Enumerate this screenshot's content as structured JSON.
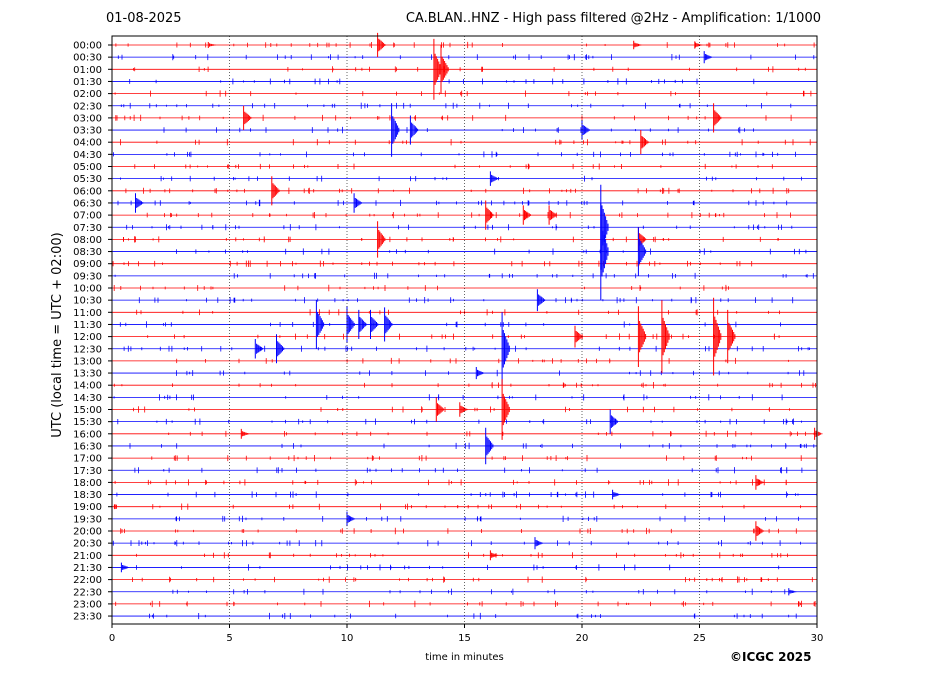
{
  "header": {
    "date": "01-08-2025",
    "title": "CA.BLAN..HNZ - High pass filtered @2Hz - Amplification: 1/1000"
  },
  "footer": {
    "copyright": "©ICGC 2025"
  },
  "chart_data": {
    "type": "line",
    "title": "CA.BLAN..HNZ - High pass filtered @2Hz - Amplification: 1/1000",
    "xlabel": "time in minutes",
    "ylabel": "UTC (local time = UTC + 02:00)",
    "xlim": [
      0,
      30
    ],
    "xticks": [
      0,
      5,
      10,
      15,
      20,
      25,
      30
    ],
    "grid": "vertical dotted lines at 5-minute intervals",
    "trace_colors": [
      "#ff0000",
      "#0000ff"
    ],
    "rows": [
      "00:00",
      "00:30",
      "01:00",
      "01:30",
      "02:00",
      "02:30",
      "03:00",
      "03:30",
      "04:00",
      "04:30",
      "05:00",
      "05:30",
      "06:00",
      "06:30",
      "07:00",
      "07:30",
      "08:00",
      "08:30",
      "09:00",
      "09:30",
      "10:00",
      "10:30",
      "11:00",
      "11:30",
      "12:00",
      "12:30",
      "13:00",
      "13:30",
      "14:00",
      "14:30",
      "15:00",
      "15:30",
      "16:00",
      "16:30",
      "17:00",
      "17:30",
      "18:00",
      "18:30",
      "19:00",
      "19:30",
      "20:00",
      "20:30",
      "21:00",
      "21:30",
      "22:00",
      "22:30",
      "23:00",
      "23:30"
    ],
    "events": [
      {
        "row": "00:00",
        "minute": 4.1,
        "amp": 0.25
      },
      {
        "row": "00:00",
        "minute": 11.3,
        "amp": 1.0
      },
      {
        "row": "00:00",
        "minute": 22.2,
        "amp": 0.35
      },
      {
        "row": "00:00",
        "minute": 24.8,
        "amp": 0.3
      },
      {
        "row": "00:30",
        "minute": 25.2,
        "amp": 0.5
      },
      {
        "row": "01:00",
        "minute": 13.7,
        "amp": 2.5
      },
      {
        "row": "01:00",
        "minute": 14.0,
        "amp": 2.0
      },
      {
        "row": "03:00",
        "minute": 5.6,
        "amp": 1.0
      },
      {
        "row": "03:00",
        "minute": 25.6,
        "amp": 1.2
      },
      {
        "row": "03:30",
        "minute": 11.9,
        "amp": 2.2
      },
      {
        "row": "03:30",
        "minute": 12.7,
        "amp": 1.2
      },
      {
        "row": "03:30",
        "minute": 20.0,
        "amp": 0.8
      },
      {
        "row": "04:00",
        "minute": 22.5,
        "amp": 1.0
      },
      {
        "row": "05:30",
        "minute": 16.1,
        "amp": 0.6
      },
      {
        "row": "06:00",
        "minute": 6.8,
        "amp": 1.2
      },
      {
        "row": "06:30",
        "minute": 1.0,
        "amp": 0.8
      },
      {
        "row": "06:30",
        "minute": 10.3,
        "amp": 0.8
      },
      {
        "row": "07:00",
        "minute": 15.9,
        "amp": 1.2
      },
      {
        "row": "07:00",
        "minute": 17.5,
        "amp": 0.8
      },
      {
        "row": "07:00",
        "minute": 18.6,
        "amp": 0.8
      },
      {
        "row": "07:30",
        "minute": 20.8,
        "amp": 3.5
      },
      {
        "row": "08:00",
        "minute": 11.3,
        "amp": 1.5
      },
      {
        "row": "08:00",
        "minute": 22.4,
        "amp": 1.0
      },
      {
        "row": "08:30",
        "minute": 20.8,
        "amp": 4.0
      },
      {
        "row": "08:30",
        "minute": 22.4,
        "amp": 2.0
      },
      {
        "row": "10:30",
        "minute": 18.1,
        "amp": 0.9
      },
      {
        "row": "11:30",
        "minute": 8.7,
        "amp": 2.0
      },
      {
        "row": "11:30",
        "minute": 10.0,
        "amp": 1.5
      },
      {
        "row": "11:30",
        "minute": 10.5,
        "amp": 1.2
      },
      {
        "row": "11:30",
        "minute": 11.0,
        "amp": 1.2
      },
      {
        "row": "11:30",
        "minute": 11.6,
        "amp": 1.4
      },
      {
        "row": "12:00",
        "minute": 19.7,
        "amp": 0.9
      },
      {
        "row": "12:00",
        "minute": 22.4,
        "amp": 2.5
      },
      {
        "row": "12:00",
        "minute": 23.4,
        "amp": 3.0
      },
      {
        "row": "12:00",
        "minute": 25.6,
        "amp": 3.2
      },
      {
        "row": "12:00",
        "minute": 26.2,
        "amp": 2.2
      },
      {
        "row": "12:30",
        "minute": 6.1,
        "amp": 0.8
      },
      {
        "row": "12:30",
        "minute": 7.0,
        "amp": 1.2
      },
      {
        "row": "12:30",
        "minute": 16.6,
        "amp": 3.0
      },
      {
        "row": "13:30",
        "minute": 15.5,
        "amp": 0.5
      },
      {
        "row": "15:00",
        "minute": 13.8,
        "amp": 1.0
      },
      {
        "row": "15:00",
        "minute": 14.8,
        "amp": 0.6
      },
      {
        "row": "15:00",
        "minute": 16.6,
        "amp": 2.5
      },
      {
        "row": "15:30",
        "minute": 21.2,
        "amp": 1.0
      },
      {
        "row": "16:00",
        "minute": 5.5,
        "amp": 0.4
      },
      {
        "row": "16:00",
        "minute": 29.9,
        "amp": 0.5
      },
      {
        "row": "16:30",
        "minute": 15.9,
        "amp": 1.5
      },
      {
        "row": "18:00",
        "minute": 27.4,
        "amp": 0.6
      },
      {
        "row": "18:30",
        "minute": 21.3,
        "amp": 0.4
      },
      {
        "row": "19:30",
        "minute": 10.0,
        "amp": 0.6
      },
      {
        "row": "20:00",
        "minute": 27.4,
        "amp": 0.8
      },
      {
        "row": "20:30",
        "minute": 18.0,
        "amp": 0.5
      },
      {
        "row": "21:00",
        "minute": 16.1,
        "amp": 0.4
      },
      {
        "row": "21:30",
        "minute": 0.4,
        "amp": 0.4
      },
      {
        "row": "22:30",
        "minute": 28.8,
        "amp": 0.3
      }
    ]
  }
}
